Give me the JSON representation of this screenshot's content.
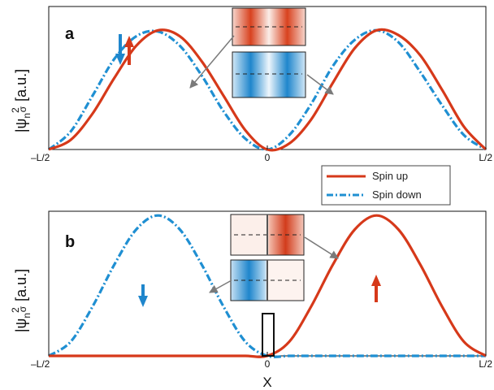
{
  "colors": {
    "spin_up": "#d6391a",
    "spin_down": "#1f8fd2",
    "axis": "#111111",
    "arrow": "#7a7a7a"
  },
  "legend": {
    "up_label": "Spin up",
    "down_label": "Spin down"
  },
  "chart_data": [
    {
      "panel": "a",
      "type": "line",
      "ylabel": "|ψ_n|²_σ [a.u.]",
      "xlabel": "",
      "xticks": [
        "-L/2",
        "0",
        "L/2"
      ],
      "xlim": [
        -0.5,
        0.5
      ],
      "ylim": [
        0,
        1.2
      ],
      "grid": false,
      "x": [
        -0.5,
        -0.45,
        -0.4,
        -0.35,
        -0.3,
        -0.25,
        -0.2,
        -0.15,
        -0.1,
        -0.05,
        0,
        0.05,
        0.1,
        0.15,
        0.2,
        0.25,
        0.3,
        0.35,
        0.4,
        0.45,
        0.5
      ],
      "series": [
        {
          "name": "Spin up",
          "values": [
            0,
            0.08,
            0.3,
            0.6,
            0.87,
            1.0,
            0.95,
            0.74,
            0.45,
            0.16,
            0,
            0.05,
            0.25,
            0.56,
            0.85,
            1.0,
            0.96,
            0.79,
            0.5,
            0.19,
            0
          ]
        },
        {
          "name": "Spin down",
          "values": [
            0,
            0.15,
            0.45,
            0.76,
            0.95,
            0.99,
            0.87,
            0.62,
            0.32,
            0.09,
            0,
            0.12,
            0.38,
            0.7,
            0.92,
            1.0,
            0.9,
            0.65,
            0.37,
            0.12,
            0
          ]
        }
      ]
    },
    {
      "panel": "b",
      "type": "line",
      "ylabel": "|ψ_n|²_σ [a.u.]",
      "xlabel": "X",
      "xticks": [
        "-L/2",
        "0",
        "L/2"
      ],
      "xlim": [
        -0.5,
        0.5
      ],
      "ylim": [
        0,
        1.03
      ],
      "grid": false,
      "x": [
        -0.5,
        -0.45,
        -0.4,
        -0.35,
        -0.3,
        -0.25,
        -0.2,
        -0.15,
        -0.1,
        -0.05,
        0,
        0.05,
        0.1,
        0.15,
        0.2,
        0.25,
        0.3,
        0.35,
        0.4,
        0.45,
        0.5
      ],
      "series": [
        {
          "name": "Spin up",
          "values": [
            0,
            0,
            0,
            0,
            0,
            0,
            0,
            0,
            0,
            0,
            0,
            0.1,
            0.35,
            0.65,
            0.9,
            1.0,
            0.9,
            0.65,
            0.35,
            0.1,
            0
          ]
        },
        {
          "name": "Spin down",
          "values": [
            0,
            0.1,
            0.35,
            0.65,
            0.9,
            1.0,
            0.9,
            0.65,
            0.35,
            0.1,
            0,
            0,
            0,
            0,
            0,
            0,
            0,
            0,
            0,
            0,
            0
          ]
        }
      ]
    }
  ]
}
